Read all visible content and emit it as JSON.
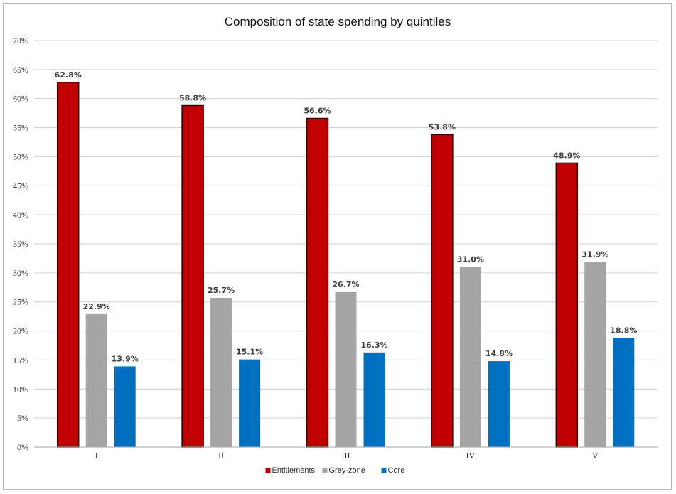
{
  "chart_data": {
    "type": "bar",
    "title": "Composition of state spending by quintiles",
    "xlabel": "",
    "ylabel": "",
    "categories": [
      "I",
      "II",
      "III",
      "IV",
      "V"
    ],
    "series": [
      {
        "name": "Entitlements",
        "values": [
          62.8,
          58.8,
          56.6,
          53.8,
          48.9
        ],
        "color": "#c00000",
        "labels": [
          "62.8%",
          "58.8%",
          "56.6%",
          "53.8%",
          "48.9%"
        ]
      },
      {
        "name": "Grey-zone",
        "values": [
          22.9,
          25.7,
          26.7,
          31.0,
          31.9
        ],
        "color": "#a5a5a5",
        "labels": [
          "22.9%",
          "25.7%",
          "26.7%",
          "31.0%",
          "31.9%"
        ]
      },
      {
        "name": "Core",
        "values": [
          13.9,
          15.1,
          16.3,
          14.8,
          18.8
        ],
        "color": "#0070c0",
        "labels": [
          "13.9%",
          "15.1%",
          "16.3%",
          "14.8%",
          "18.8%"
        ]
      }
    ],
    "ylim": [
      0,
      70
    ],
    "yticks": [
      0,
      5,
      10,
      15,
      20,
      25,
      30,
      35,
      40,
      45,
      50,
      55,
      60,
      65,
      70
    ],
    "ytick_labels": [
      "0%",
      "5%",
      "10%",
      "15%",
      "20%",
      "25%",
      "30%",
      "35%",
      "40%",
      "45%",
      "50%",
      "55%",
      "60%",
      "65%",
      "70%"
    ],
    "grid": true,
    "legend_position": "bottom"
  }
}
